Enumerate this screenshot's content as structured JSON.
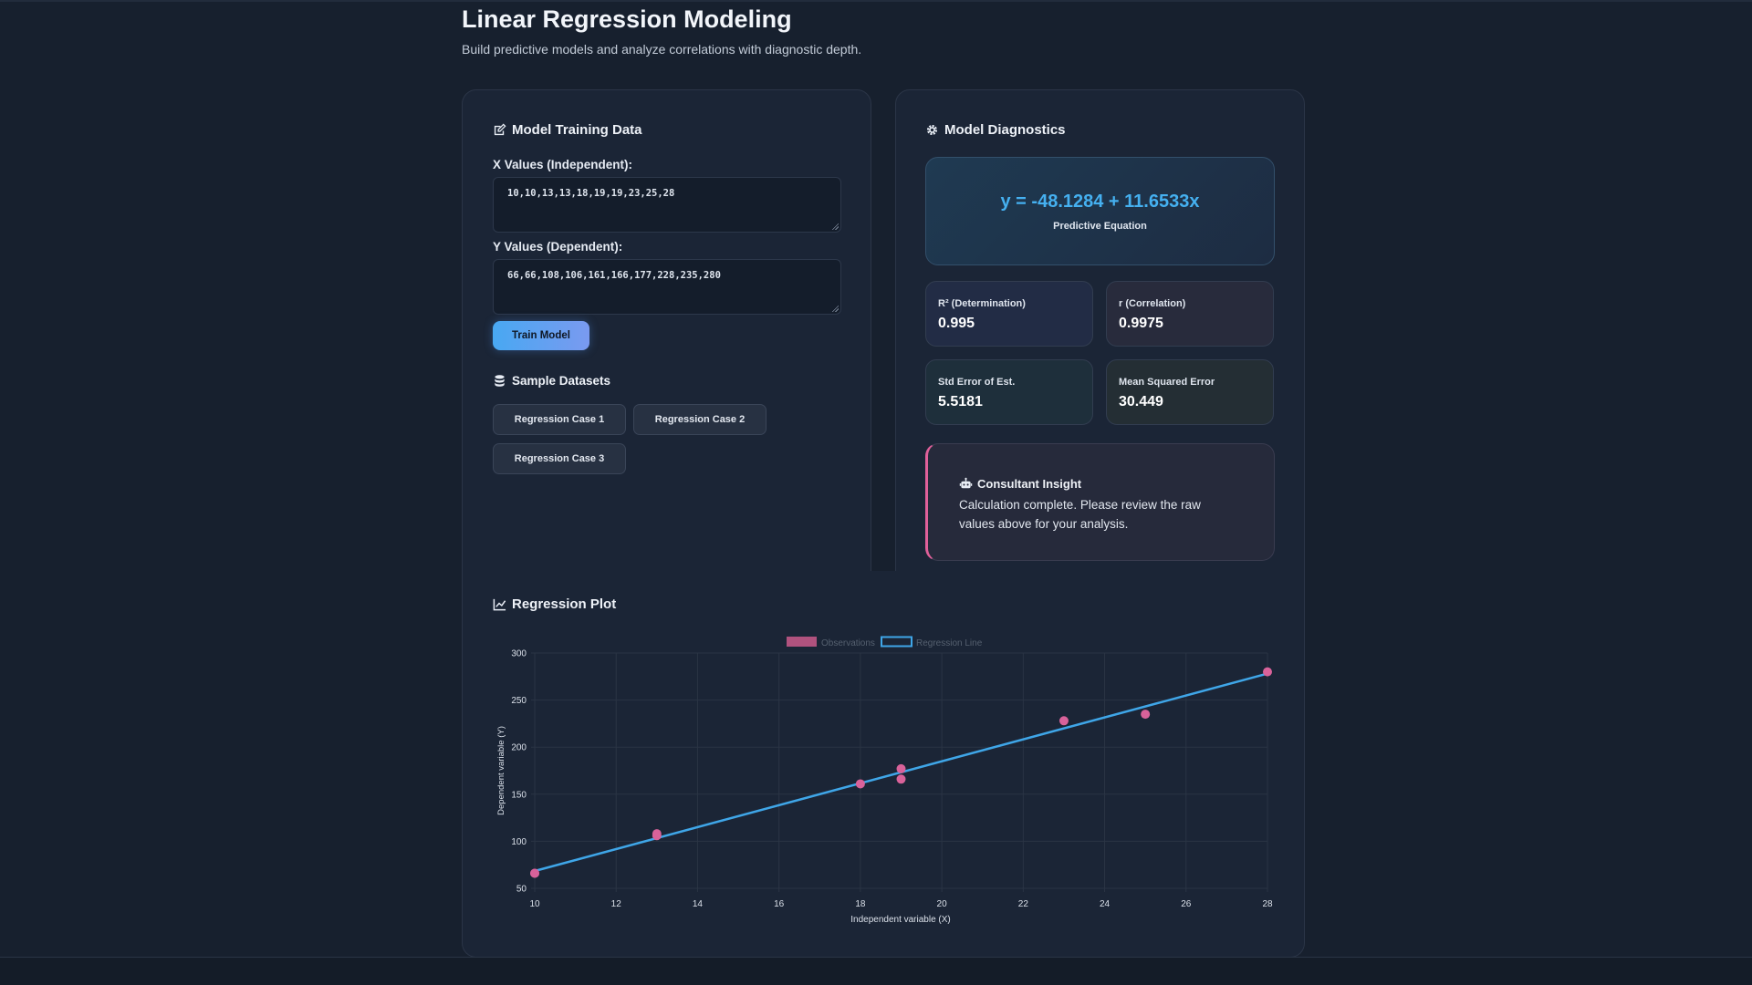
{
  "header": {
    "title": "Linear Regression Modeling",
    "subtitle": "Build predictive models and analyze correlations with diagnostic depth."
  },
  "training": {
    "title": "Model Training Data",
    "title_icon": "edit-icon",
    "x_label": "X Values (Independent):",
    "x_value": "10,10,13,13,18,19,19,23,25,28",
    "y_label": "Y Values (Dependent):",
    "y_value": "66,66,108,106,161,166,177,228,235,280",
    "train_button": "Train Model",
    "samples_title": "Sample Datasets",
    "samples_icon": "database-icon",
    "samples": [
      "Regression Case 1",
      "Regression Case 2",
      "Regression Case 3"
    ]
  },
  "diagnostics": {
    "title": "Model Diagnostics",
    "title_icon": "gear-icon",
    "equation": "y = -48.1284 + 11.6533x",
    "equation_caption": "Predictive Equation",
    "metrics": [
      {
        "label": "R² (Determination)",
        "value": "0.995"
      },
      {
        "label": "r (Correlation)",
        "value": "0.9975"
      },
      {
        "label": "Std Error of Est.",
        "value": "5.5181"
      },
      {
        "label": "Mean Squared Error",
        "value": "30.449"
      }
    ],
    "insight_title": "Consultant Insight",
    "insight_icon": "robot-icon",
    "insight_text": "Calculation complete. Please review the raw values above for your analysis."
  },
  "plot": {
    "title": "Regression Plot",
    "title_icon": "line-chart-icon"
  },
  "colors": {
    "accent_blue": "#3fa6e8",
    "point_pink": "#d9629a",
    "background": "#17202e",
    "card": "#1b2536"
  },
  "chart_data": {
    "type": "scatter",
    "title": "",
    "xlabel": "Independent variable (X)",
    "ylabel": "Dependent variable (Y)",
    "xlim": [
      10,
      28
    ],
    "ylim": [
      50,
      300
    ],
    "x_ticks": [
      "10",
      "12",
      "14",
      "16",
      "18",
      "20",
      "22",
      "24",
      "26",
      "28"
    ],
    "y_ticks": [
      "50",
      "100",
      "150",
      "200",
      "250",
      "300"
    ],
    "legend": [
      "Observations",
      "Regression Line"
    ],
    "legend_position": "top-center",
    "grid": true,
    "series": [
      {
        "name": "Observations",
        "type": "scatter",
        "x": [
          10,
          10,
          13,
          13,
          18,
          19,
          19,
          23,
          25,
          28
        ],
        "y": [
          66,
          66,
          108,
          106,
          161,
          166,
          177,
          228,
          235,
          280
        ]
      },
      {
        "name": "Regression Line",
        "type": "line",
        "x": [
          10,
          28
        ],
        "y": [
          68.4046,
          278.164
        ]
      }
    ]
  }
}
